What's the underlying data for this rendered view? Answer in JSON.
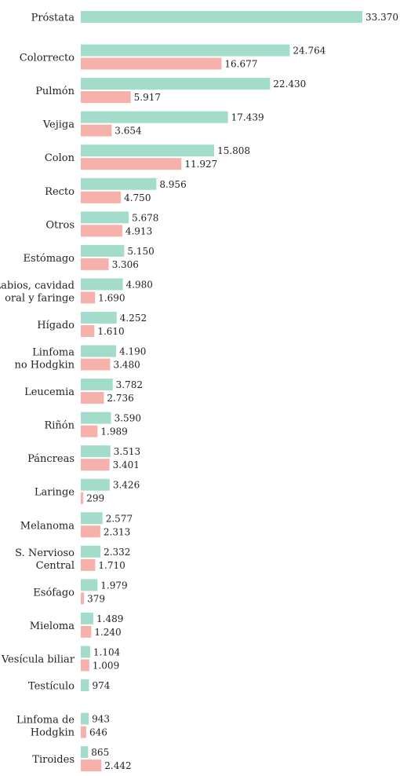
{
  "chart_data": {
    "type": "bar",
    "orientation": "horizontal",
    "categories": [
      [
        "Próstata"
      ],
      [
        "Colorrecto"
      ],
      [
        "Pulmón"
      ],
      [
        "Vejiga"
      ],
      [
        "Colon"
      ],
      [
        "Recto"
      ],
      [
        "Otros"
      ],
      [
        "Estómago"
      ],
      [
        "Labios, cavidad",
        "oral y faringe"
      ],
      [
        "Hígado"
      ],
      [
        "Linfoma",
        "no Hodgkin"
      ],
      [
        "Leucemia"
      ],
      [
        "Riñón"
      ],
      [
        "Páncreas"
      ],
      [
        "Laringe"
      ],
      [
        "Melanoma"
      ],
      [
        "S. Nervioso",
        "Central"
      ],
      [
        "Esófago"
      ],
      [
        "Mieloma"
      ],
      [
        "Vesícula biliar"
      ],
      [
        "Testículo"
      ],
      [
        "Linfoma de",
        "Hodgkin"
      ],
      [
        "Tiroides"
      ]
    ],
    "series": [
      {
        "color": "#a3dccb",
        "values": [
          33370,
          24764,
          22430,
          17439,
          15808,
          8956,
          5678,
          5150,
          4980,
          4252,
          4190,
          3782,
          3590,
          3513,
          3426,
          2577,
          2332,
          1979,
          1489,
          1104,
          974,
          943,
          865
        ],
        "labels": [
          "33.370",
          "24.764",
          "22.430",
          "17.439",
          "15.808",
          "8.956",
          "5.678",
          "5.150",
          "4.980",
          "4.252",
          "4.190",
          "3.782",
          "3.590",
          "3.513",
          "3.426",
          "2.577",
          "2.332",
          "1.979",
          "1.489",
          "1.104",
          "974",
          "943",
          "865"
        ]
      },
      {
        "color": "#f7b1ab",
        "values": [
          null,
          16677,
          5917,
          3654,
          11927,
          4750,
          4913,
          3306,
          1690,
          1610,
          3480,
          2736,
          1989,
          3401,
          299,
          2313,
          1710,
          379,
          1240,
          1009,
          null,
          646,
          2442
        ],
        "labels": [
          null,
          "16.677",
          "5.917",
          "3.654",
          "11.927",
          "4.750",
          "4.913",
          "3.306",
          "1.690",
          "1.610",
          "3.480",
          "2.736",
          "1.989",
          "3.401",
          "299",
          "2.313",
          "1.710",
          "379",
          "1.240",
          "1.009",
          null,
          "646",
          "2.442"
        ]
      }
    ],
    "xlim": [
      0,
      33370
    ],
    "grid": false,
    "legend": "none"
  }
}
